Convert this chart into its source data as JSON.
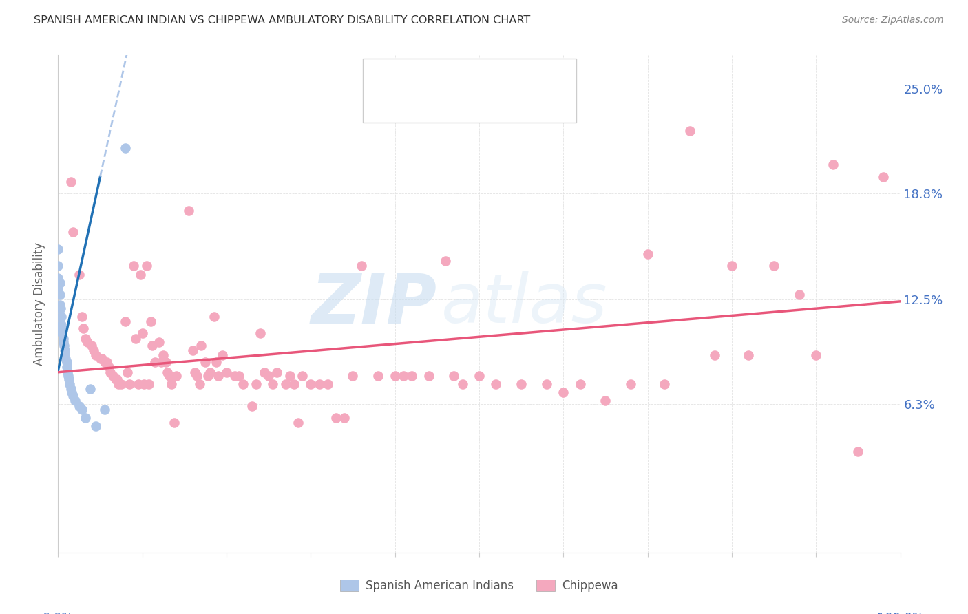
{
  "title": "SPANISH AMERICAN INDIAN VS CHIPPEWA AMBULATORY DISABILITY CORRELATION CHART",
  "source": "Source: ZipAtlas.com",
  "ylabel": "Ambulatory Disability",
  "yticks": [
    0.0,
    6.3,
    12.5,
    18.8,
    25.0
  ],
  "ytick_labels": [
    "",
    "6.3%",
    "12.5%",
    "18.8%",
    "25.0%"
  ],
  "xlim": [
    0.0,
    100.0
  ],
  "ylim": [
    -2.5,
    27.0
  ],
  "watermark_zip": "ZIP",
  "watermark_atlas": "atlas",
  "blue_color": "#aec6e8",
  "pink_color": "#f4a8be",
  "trendline_blue_color": "#2171b5",
  "trendline_pink_color": "#e8567a",
  "trendline_dashed_color": "#aec6e8",
  "background_color": "#ffffff",
  "grid_color": "#e0e0e0",
  "blue_scatter": [
    [
      0.0,
      15.5
    ],
    [
      0.0,
      14.5
    ],
    [
      0.0,
      13.8
    ],
    [
      0.0,
      13.2
    ],
    [
      0.2,
      13.5
    ],
    [
      0.2,
      12.8
    ],
    [
      0.2,
      12.2
    ],
    [
      0.3,
      12.0
    ],
    [
      0.4,
      11.5
    ],
    [
      0.4,
      11.0
    ],
    [
      0.5,
      10.8
    ],
    [
      0.5,
      10.5
    ],
    [
      0.6,
      10.2
    ],
    [
      0.6,
      10.0
    ],
    [
      0.7,
      9.8
    ],
    [
      0.8,
      9.5
    ],
    [
      0.8,
      9.2
    ],
    [
      0.9,
      9.0
    ],
    [
      1.0,
      8.8
    ],
    [
      1.0,
      8.5
    ],
    [
      1.1,
      8.2
    ],
    [
      1.2,
      8.0
    ],
    [
      1.3,
      7.8
    ],
    [
      1.4,
      7.5
    ],
    [
      1.5,
      7.2
    ],
    [
      1.6,
      7.0
    ],
    [
      1.8,
      6.8
    ],
    [
      2.0,
      6.5
    ],
    [
      2.5,
      6.2
    ],
    [
      2.8,
      6.0
    ],
    [
      3.2,
      5.5
    ],
    [
      3.8,
      7.2
    ],
    [
      4.5,
      5.0
    ],
    [
      5.5,
      6.0
    ],
    [
      8.0,
      21.5
    ]
  ],
  "pink_scatter": [
    [
      1.5,
      19.5
    ],
    [
      1.8,
      16.5
    ],
    [
      2.5,
      14.0
    ],
    [
      2.8,
      11.5
    ],
    [
      3.0,
      10.8
    ],
    [
      3.2,
      10.2
    ],
    [
      3.5,
      10.0
    ],
    [
      4.0,
      9.8
    ],
    [
      4.2,
      9.5
    ],
    [
      4.5,
      9.2
    ],
    [
      5.0,
      9.0
    ],
    [
      5.2,
      9.0
    ],
    [
      5.5,
      8.8
    ],
    [
      5.8,
      8.8
    ],
    [
      6.0,
      8.5
    ],
    [
      6.2,
      8.2
    ],
    [
      6.5,
      8.0
    ],
    [
      6.8,
      7.8
    ],
    [
      7.0,
      7.8
    ],
    [
      7.2,
      7.5
    ],
    [
      7.5,
      7.5
    ],
    [
      8.0,
      11.2
    ],
    [
      8.2,
      8.2
    ],
    [
      8.5,
      7.5
    ],
    [
      9.0,
      14.5
    ],
    [
      9.2,
      10.2
    ],
    [
      9.5,
      7.5
    ],
    [
      9.8,
      14.0
    ],
    [
      10.0,
      10.5
    ],
    [
      10.2,
      7.5
    ],
    [
      10.5,
      14.5
    ],
    [
      10.8,
      7.5
    ],
    [
      11.0,
      11.2
    ],
    [
      11.2,
      9.8
    ],
    [
      11.5,
      8.8
    ],
    [
      12.0,
      10.0
    ],
    [
      12.2,
      8.8
    ],
    [
      12.5,
      9.2
    ],
    [
      12.8,
      8.8
    ],
    [
      13.0,
      8.2
    ],
    [
      13.2,
      8.0
    ],
    [
      13.5,
      7.5
    ],
    [
      13.8,
      5.2
    ],
    [
      14.0,
      8.0
    ],
    [
      15.5,
      17.8
    ],
    [
      16.0,
      9.5
    ],
    [
      16.2,
      8.2
    ],
    [
      16.5,
      8.0
    ],
    [
      16.8,
      7.5
    ],
    [
      17.0,
      9.8
    ],
    [
      17.5,
      8.8
    ],
    [
      17.8,
      8.0
    ],
    [
      18.0,
      8.2
    ],
    [
      18.5,
      11.5
    ],
    [
      18.8,
      8.8
    ],
    [
      19.0,
      8.0
    ],
    [
      19.5,
      9.2
    ],
    [
      20.0,
      8.2
    ],
    [
      21.0,
      8.0
    ],
    [
      21.5,
      8.0
    ],
    [
      22.0,
      7.5
    ],
    [
      23.0,
      6.2
    ],
    [
      23.5,
      7.5
    ],
    [
      24.0,
      10.5
    ],
    [
      24.5,
      8.2
    ],
    [
      25.0,
      8.0
    ],
    [
      25.5,
      7.5
    ],
    [
      26.0,
      8.2
    ],
    [
      27.0,
      7.5
    ],
    [
      27.5,
      8.0
    ],
    [
      28.0,
      7.5
    ],
    [
      28.5,
      5.2
    ],
    [
      29.0,
      8.0
    ],
    [
      30.0,
      7.5
    ],
    [
      31.0,
      7.5
    ],
    [
      32.0,
      7.5
    ],
    [
      33.0,
      5.5
    ],
    [
      34.0,
      5.5
    ],
    [
      35.0,
      8.0
    ],
    [
      36.0,
      14.5
    ],
    [
      38.0,
      8.0
    ],
    [
      40.0,
      8.0
    ],
    [
      41.0,
      8.0
    ],
    [
      42.0,
      8.0
    ],
    [
      44.0,
      8.0
    ],
    [
      46.0,
      14.8
    ],
    [
      47.0,
      8.0
    ],
    [
      48.0,
      7.5
    ],
    [
      50.0,
      8.0
    ],
    [
      52.0,
      7.5
    ],
    [
      55.0,
      7.5
    ],
    [
      58.0,
      7.5
    ],
    [
      60.0,
      7.0
    ],
    [
      62.0,
      7.5
    ],
    [
      65.0,
      6.5
    ],
    [
      68.0,
      7.5
    ],
    [
      70.0,
      15.2
    ],
    [
      72.0,
      7.5
    ],
    [
      75.0,
      22.5
    ],
    [
      78.0,
      9.2
    ],
    [
      80.0,
      14.5
    ],
    [
      82.0,
      9.2
    ],
    [
      85.0,
      14.5
    ],
    [
      88.0,
      12.8
    ],
    [
      90.0,
      9.2
    ],
    [
      92.0,
      20.5
    ],
    [
      95.0,
      3.5
    ],
    [
      98.0,
      19.8
    ]
  ]
}
